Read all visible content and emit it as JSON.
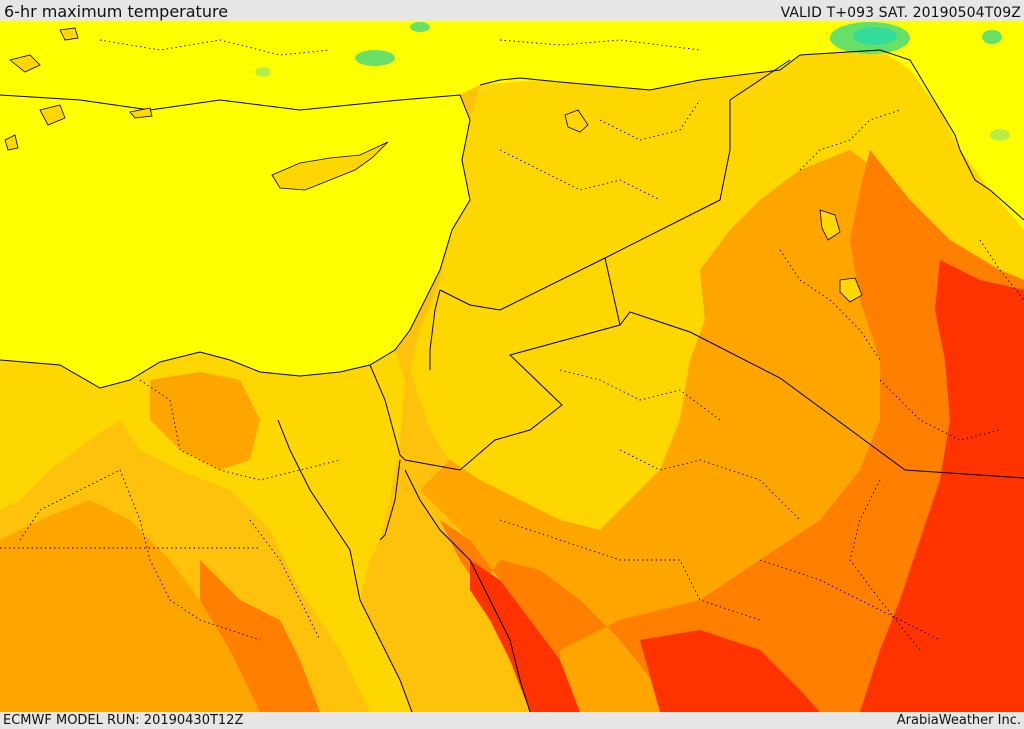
{
  "header": {
    "title": "6-hr maximum temperature",
    "valid": "VALID T+093 SAT. 20190504T09Z"
  },
  "footer": {
    "model_run": "ECMWF MODEL RUN: 20190430T12Z",
    "credit": "ArabiaWeather Inc."
  },
  "colors": {
    "sea_yellow": "#ffff00",
    "warm_gold": "#ffd700",
    "warm_amber": "#ffc20c",
    "hot_orange": "#ffa500",
    "hotter_orange": "#ff7f00",
    "hottest_red": "#ff3300",
    "cool_green": "#66e066",
    "coolest_cyan": "#33dd99",
    "border_line": "#000000"
  }
}
